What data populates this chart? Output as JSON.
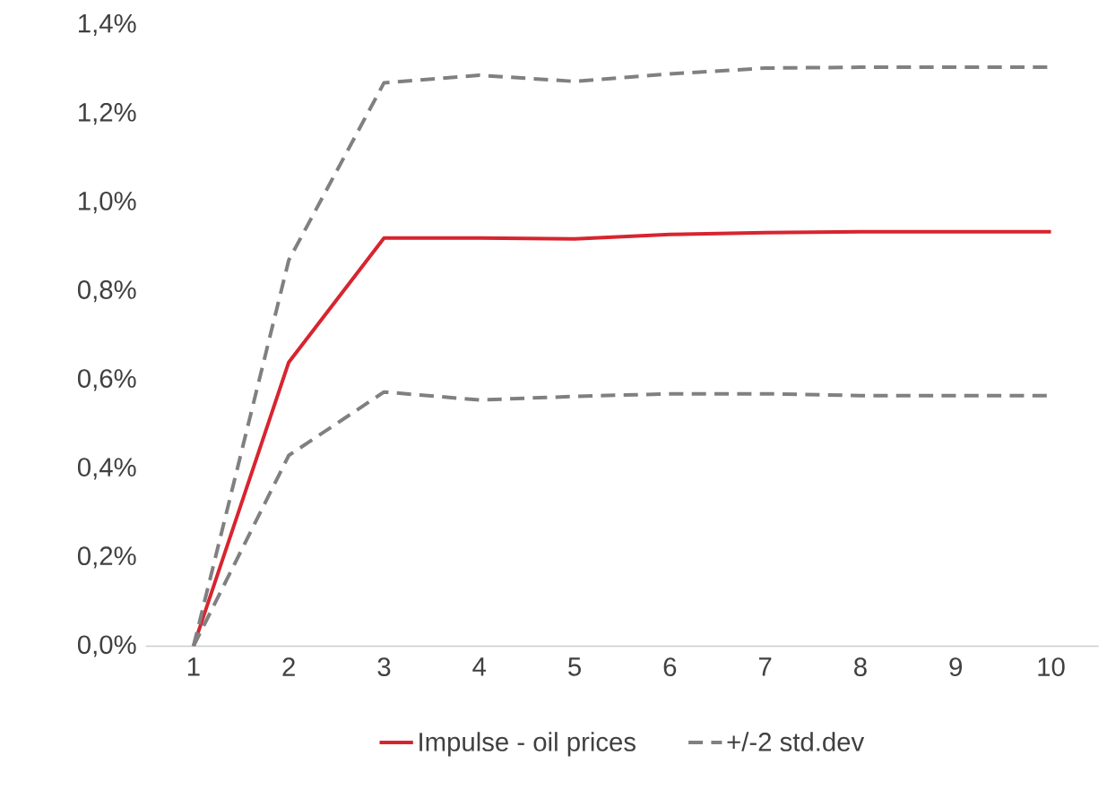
{
  "chart_data": {
    "type": "line",
    "categories": [
      "1",
      "2",
      "3",
      "4",
      "5",
      "6",
      "7",
      "8",
      "9",
      "10"
    ],
    "series": [
      {
        "name": "Impulse - oil prices",
        "color": "#d7252f",
        "line_style": "solid",
        "values": [
          0,
          0.64,
          0.92,
          0.92,
          0.918,
          0.928,
          0.932,
          0.934,
          0.934,
          0.934
        ]
      },
      {
        "name": "+/-2 std.dev",
        "color": "#808080",
        "line_style": "dashed",
        "values": [
          0,
          0.87,
          1.27,
          1.287,
          1.273,
          1.29,
          1.303,
          1.305,
          1.305,
          1.305
        ]
      },
      {
        "color": "#808080",
        "line_style": "dashed",
        "values": [
          0,
          0.43,
          0.573,
          0.555,
          0.563,
          0.569,
          0.569,
          0.565,
          0.565,
          0.565
        ]
      }
    ],
    "ylim": [
      0,
      1.4
    ],
    "yticks": [
      {
        "value": 0,
        "label": "0,0%"
      },
      {
        "value": 0.2,
        "label": "0,2%"
      },
      {
        "value": 0.4,
        "label": "0,4%"
      },
      {
        "value": 0.6,
        "label": "0,6%"
      },
      {
        "value": 0.8,
        "label": "0,8%"
      },
      {
        "value": 1.0,
        "label": "1,0%"
      },
      {
        "value": 1.2,
        "label": "1,2%"
      },
      {
        "value": 1.4,
        "label": "1,4%"
      }
    ],
    "grid": false,
    "legend": "bottom"
  }
}
